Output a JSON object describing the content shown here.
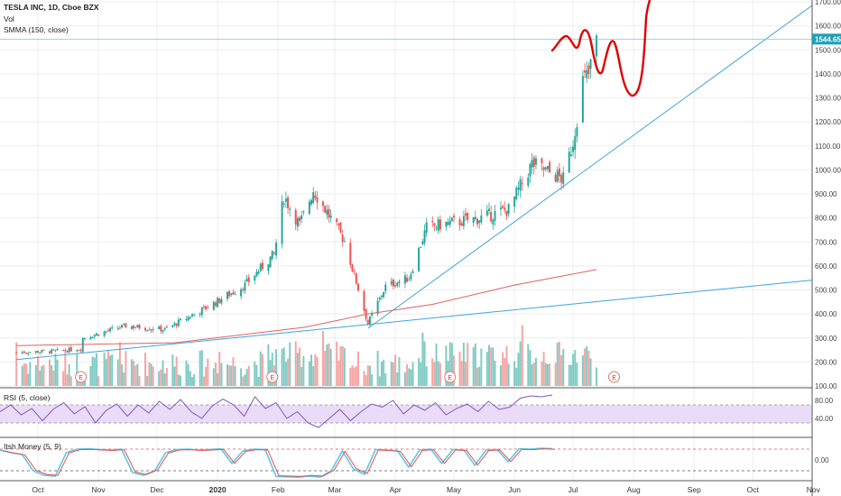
{
  "legend": {
    "title": "TESLA INC, 1D, Cboe BZX",
    "vol": "Vol",
    "smma": "SMMA (150, close)",
    "rsi": "RSI (5, close)",
    "wt": "Itsh Money (5, 9)"
  },
  "colors": {
    "up": "#26a69a",
    "down": "#ef5350",
    "trend": "#3da5d9",
    "price_line": "#7fc3e0",
    "smma": "#e06060",
    "rsi": "#7e57c2",
    "rsi_band": "#eadcf8",
    "drawing": "#e00000",
    "price_badge": "#1e9eb4"
  },
  "chart_data": [
    {
      "type": "candlestick",
      "title": "TESLA INC, 1D, Cboe BZX",
      "x_ticks": [
        "Oct",
        "Nov",
        "Dec",
        "2020",
        "Feb",
        "Mar",
        "Apr",
        "May",
        "Jun",
        "Jul",
        "Aug",
        "Sep",
        "Oct",
        "Nov"
      ],
      "y_ticks": [
        "1700.00",
        "1600.00",
        "1500.00",
        "1400.00",
        "1300.00",
        "1200.00",
        "1100.00",
        "1000.00",
        "900.00",
        "800.00",
        "700.00",
        "600.00",
        "500.00",
        "400.00",
        "300.00",
        "200.00",
        "100.00"
      ],
      "ylim": [
        100,
        1720
      ],
      "last_price": "1544.65",
      "closes_by_date": [
        [
          "2019-09-20",
          240
        ],
        [
          "2019-10-10",
          245
        ],
        [
          "2019-10-23",
          255
        ],
        [
          "2019-10-24",
          300
        ],
        [
          "2019-11-15",
          350
        ],
        [
          "2019-12-05",
          335
        ],
        [
          "2019-12-27",
          430
        ],
        [
          "2020-01-15",
          520
        ],
        [
          "2020-01-30",
          650
        ],
        [
          "2020-02-04",
          890
        ],
        [
          "2020-02-12",
          770
        ],
        [
          "2020-02-19",
          917
        ],
        [
          "2020-03-06",
          705
        ],
        [
          "2020-03-18",
          361
        ],
        [
          "2020-03-27",
          515
        ],
        [
          "2020-04-08",
          550
        ],
        [
          "2020-04-17",
          760
        ],
        [
          "2020-04-30",
          780
        ],
        [
          "2020-05-15",
          800
        ],
        [
          "2020-05-29",
          835
        ],
        [
          "2020-06-10",
          1025
        ],
        [
          "2020-06-26",
          960
        ],
        [
          "2020-07-01",
          1120
        ],
        [
          "2020-07-06",
          1371
        ],
        [
          "2020-07-09",
          1395
        ],
        [
          "2020-07-13",
          1544.65
        ]
      ],
      "smma_150": [
        [
          "2019-09-20",
          268
        ],
        [
          "2019-12-10",
          280
        ],
        [
          "2020-02-15",
          345
        ],
        [
          "2020-03-18",
          400
        ],
        [
          "2020-04-20",
          440
        ],
        [
          "2020-06-01",
          520
        ],
        [
          "2020-07-13",
          585
        ]
      ],
      "trendlines": [
        {
          "from": [
            "2019-09-20",
            210
          ],
          "to": [
            "2020-11-30",
            565
          ]
        },
        {
          "from": [
            "2020-03-18",
            340
          ],
          "to": [
            "2020-11-30",
            1860
          ]
        }
      ],
      "volume_scale": "shown without value labels",
      "earnings_markers": [
        "2019-10-23",
        "2020-01-29",
        "2020-04-29",
        "2020-07-22"
      ],
      "earnings_label": "E"
    },
    {
      "type": "line",
      "title": "RSI (5, close)",
      "y_ticks": [
        "80.00",
        "40.00"
      ],
      "ylim": [
        0,
        100
      ],
      "bands": [
        30,
        70
      ],
      "values": [
        55,
        70,
        48,
        62,
        35,
        60,
        75,
        50,
        66,
        30,
        58,
        72,
        45,
        70,
        52,
        78,
        60,
        82,
        55,
        40,
        68,
        83,
        70,
        45,
        88,
        62,
        75,
        40,
        55,
        30,
        20,
        40,
        60,
        35,
        55,
        72,
        65,
        80,
        50,
        70,
        58,
        75,
        48,
        62,
        72,
        55,
        78,
        60,
        65,
        85,
        90,
        88,
        92
      ]
    },
    {
      "type": "line",
      "title": "Itsh Money (5, 9)",
      "y_ticks": [
        "0.00"
      ],
      "values": [
        55,
        40,
        30,
        -60,
        -85,
        -90,
        40,
        60,
        62,
        58,
        55,
        60,
        -70,
        -85,
        -60,
        40,
        58,
        60,
        55,
        58,
        62,
        -20,
        50,
        60,
        58,
        -92,
        -94,
        -96,
        -90,
        -95,
        -60,
        50,
        -50,
        -80,
        58,
        55,
        50,
        -40,
        55,
        60,
        -20,
        58,
        55,
        -30,
        55,
        58,
        -10,
        62,
        60,
        65,
        62
      ]
    }
  ]
}
